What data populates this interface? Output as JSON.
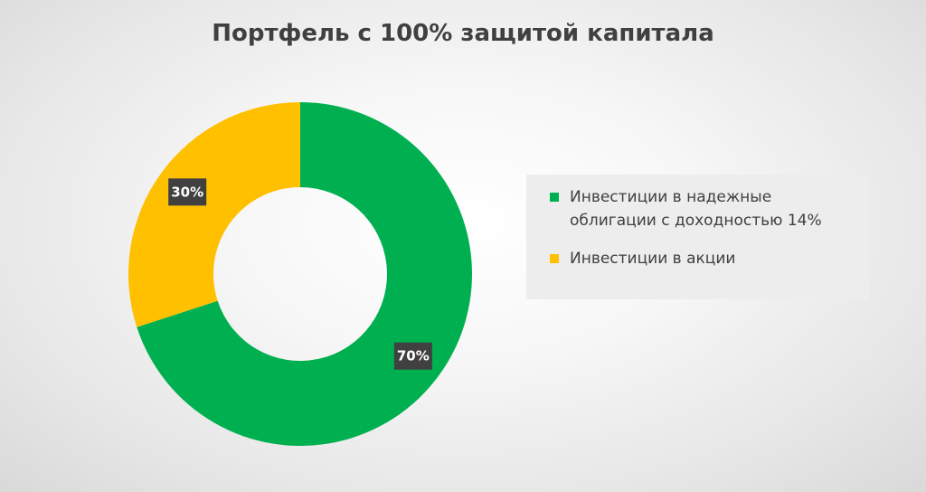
{
  "chart_data": {
    "type": "pie",
    "variant": "donut",
    "title": "Портфель с 100% защитой капитала",
    "categories": [
      "Инвестиции в надежные облигации с доходностью 14%",
      "Инвестиции в акции"
    ],
    "values": [
      70,
      30
    ],
    "data_labels": [
      "70%",
      "30%"
    ],
    "colors": [
      "#00b050",
      "#ffc000"
    ],
    "legend_position": "right"
  },
  "legend": {
    "items": [
      {
        "label": "Инвестиции в надежные облигации с доходностью 14%",
        "color": "#00b050"
      },
      {
        "label": "Инвестиции в акции",
        "color": "#ffc000"
      }
    ]
  }
}
